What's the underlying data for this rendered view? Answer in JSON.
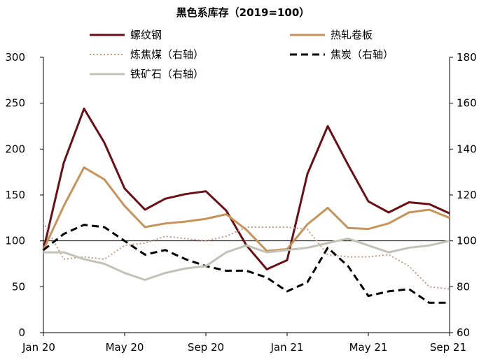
{
  "chart_data": {
    "type": "line",
    "title": "黑色系库存（2019=100）",
    "x": [
      "2020-01",
      "2020-02",
      "2020-03",
      "2020-04",
      "2020-05",
      "2020-06",
      "2020-07",
      "2020-08",
      "2020-09",
      "2020-10",
      "2020-11",
      "2020-12",
      "2021-01",
      "2021-02",
      "2021-03",
      "2021-04",
      "2021-05",
      "2021-06",
      "2021-07",
      "2021-08",
      "2021-09"
    ],
    "x_ticks": [
      {
        "x": "2020-01",
        "label": "Jan 20"
      },
      {
        "x": "2020-05",
        "label": "May 20"
      },
      {
        "x": "2020-09",
        "label": "Sep 20"
      },
      {
        "x": "2021-01",
        "label": "Jan 21"
      },
      {
        "x": "2021-05",
        "label": "May 21"
      },
      {
        "x": "2021-09",
        "label": "Sep 21"
      }
    ],
    "y_left": {
      "min": 0,
      "max": 300,
      "ticks": [
        0,
        50,
        100,
        150,
        200,
        250,
        300
      ]
    },
    "y_right": {
      "min": 60,
      "max": 180,
      "ticks": [
        60,
        80,
        100,
        120,
        140,
        160,
        180
      ]
    },
    "grid": false,
    "legend_position": "top",
    "series": [
      {
        "name": "螺纹钢",
        "axis": "left",
        "color": "#6b0f14",
        "style": "solid",
        "values": [
          90,
          185,
          244,
          207,
          157,
          134,
          146,
          151,
          154,
          133,
          95,
          69,
          79,
          173,
          225,
          183,
          143,
          131,
          142,
          140,
          130
        ]
      },
      {
        "name": "热轧卷板",
        "axis": "left",
        "color": "#c89358",
        "style": "solid",
        "values": [
          90,
          138,
          180,
          167,
          138,
          115,
          119,
          121,
          124,
          129,
          112,
          89,
          91,
          118,
          136,
          114,
          113,
          119,
          131,
          134,
          125
        ]
      },
      {
        "name": "炼焦煤（右轴）",
        "axis": "right",
        "color": "#c49a86",
        "style": "dotted",
        "values": [
          108,
          92,
          93,
          92,
          98,
          99,
          102,
          101,
          100,
          102,
          106,
          106,
          106,
          105,
          94,
          93,
          93,
          94,
          89,
          80,
          79
        ]
      },
      {
        "name": "焦炭（右轴）",
        "axis": "right",
        "color": "#000000",
        "style": "dashed",
        "values": [
          96,
          103,
          107,
          106,
          100,
          94,
          96,
          92,
          89,
          87,
          87,
          84,
          78,
          82,
          97,
          89,
          76,
          78,
          79,
          73,
          73
        ]
      },
      {
        "name": "铁矿石（右轴）",
        "axis": "right",
        "color": "#c0c3b6",
        "style": "solid",
        "values": [
          95,
          95,
          92,
          90,
          86,
          83,
          86,
          88,
          89,
          95,
          98,
          95,
          96,
          97,
          99,
          101,
          98,
          95,
          97,
          98,
          100
        ]
      }
    ]
  }
}
